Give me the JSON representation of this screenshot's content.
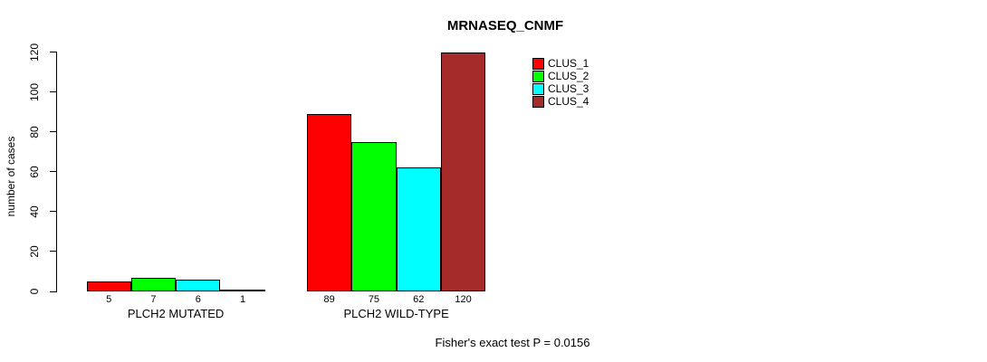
{
  "title": "MRNASEQ_CNMF",
  "footer": "Fisher's exact test P = 0.0156",
  "chart_data": {
    "type": "bar",
    "title": "MRNASEQ_CNMF",
    "xlabel": "",
    "ylabel": "number of cases",
    "ylim": [
      0,
      120
    ],
    "yticks": [
      0,
      20,
      40,
      60,
      80,
      100,
      120
    ],
    "grid": false,
    "legend_position": "top-right",
    "bar_value_labels_shown": true,
    "categories": [
      "PLCH2 MUTATED",
      "PLCH2 WILD-TYPE"
    ],
    "series": [
      {
        "name": "CLUS_1",
        "color": "#ff0000",
        "values": [
          5,
          89
        ]
      },
      {
        "name": "CLUS_2",
        "color": "#00ff00",
        "values": [
          7,
          75
        ]
      },
      {
        "name": "CLUS_3",
        "color": "#00ffff",
        "values": [
          6,
          62
        ]
      },
      {
        "name": "CLUS_4",
        "color": "#a52a2a",
        "values": [
          1,
          120
        ]
      }
    ],
    "annotation": "Fisher's exact test P = 0.0156"
  }
}
